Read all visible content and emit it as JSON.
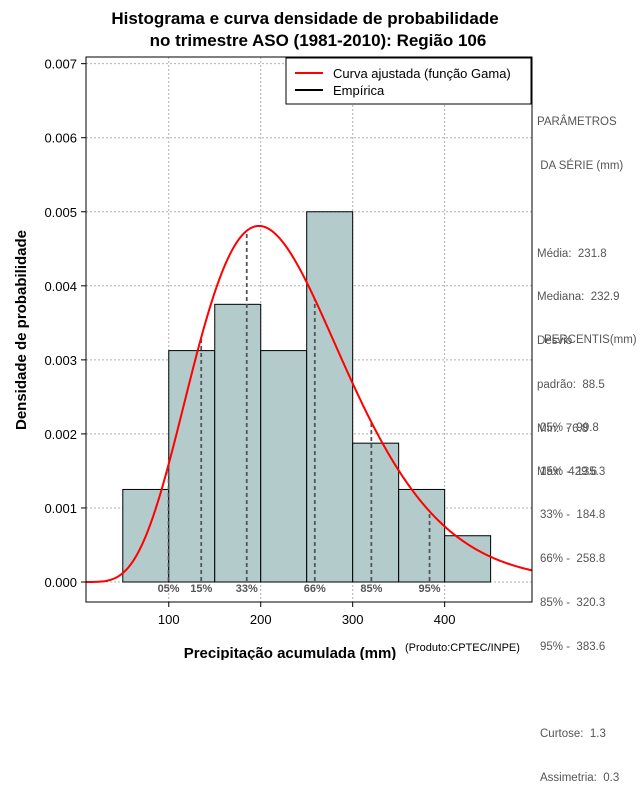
{
  "chart_data": {
    "type": "bar",
    "title_line1": "Histograma e curva densidade de probabilidade",
    "title_line2": "no trimestre ASO (1981-2010): Região 106",
    "xlabel": "Precipitação acumulada (mm)",
    "ylabel": "Densidade de probabilidade",
    "credit": "(Produto:CPTEC/INPE)",
    "xlim": [
      10,
      495
    ],
    "ylim": [
      -0.00027,
      0.00709
    ],
    "x_ticks": [
      100,
      200,
      300,
      400
    ],
    "x_tick_labels": [
      "100",
      "200",
      "300",
      "400"
    ],
    "y_ticks": [
      0.0,
      0.001,
      0.002,
      0.003,
      0.004,
      0.005,
      0.006,
      0.007
    ],
    "y_tick_labels": [
      "0.000",
      "0.001",
      "0.002",
      "0.003",
      "0.004",
      "0.005",
      "0.006",
      "0.007"
    ],
    "grid": true,
    "legend_position": "top-right",
    "legend": [
      {
        "label": "Curva ajustada (função Gama)",
        "color": "#ff0000"
      },
      {
        "label": "Empírica",
        "color": "#000000"
      }
    ],
    "histogram": {
      "bin_edges": [
        50,
        100,
        150,
        200,
        250,
        300,
        350,
        400,
        450
      ],
      "densities": [
        0.00125,
        0.003125,
        0.00375,
        0.003125,
        0.005,
        0.001875,
        0.00125,
        0.000625
      ],
      "fill_color": "#b3cbcb"
    },
    "gamma_curve": {
      "mean": 231.8,
      "sd": 88.5,
      "x_range": [
        10,
        495
      ],
      "color": "#ff0000"
    },
    "percentile_markers": [
      {
        "label": "05%",
        "x": 99.8
      },
      {
        "label": "15%",
        "x": 135.3
      },
      {
        "label": "33%",
        "x": 184.8
      },
      {
        "label": "66%",
        "x": 258.8
      },
      {
        "label": "85%",
        "x": 320.3
      },
      {
        "label": "95%",
        "x": 383.6
      }
    ]
  },
  "side_panel": {
    "params_title_1": "PARÂMETROS",
    "params_title_2": " DA SÉRIE (mm)",
    "media": "Média:  231.8",
    "mediana": "Mediana:  232.9",
    "desvio_1": "Desvio",
    "desvio_2": "padrão:  88.5",
    "min": "Mín:  76.8",
    "max": "Máx:  429.6",
    "percentis_title": "PERCENTIS(mm)",
    "p05": "05% -  99.8",
    "p15": "15% -  135.3",
    "p33": "33% -  184.8",
    "p66": "66% -  258.8",
    "p85": "85% -  320.3",
    "p95": "95% -  383.6",
    "curtose": "Curtose:  1.3",
    "assimetria": "Assimetria:  0.3"
  }
}
